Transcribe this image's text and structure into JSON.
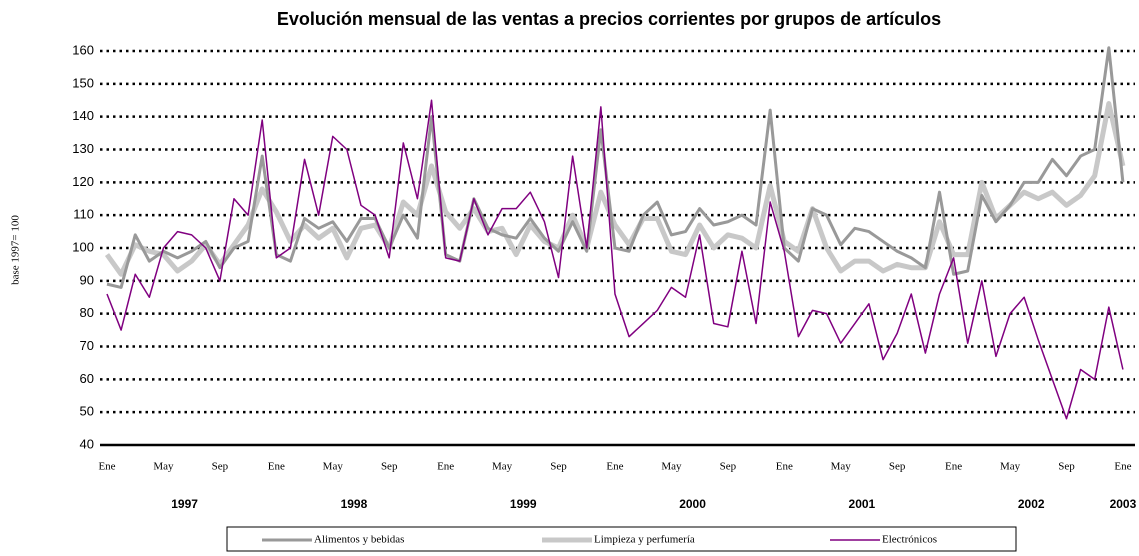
{
  "chart_data": {
    "type": "line",
    "title": "Evolución mensual de las ventas a precios corrientes por grupos de artículos",
    "y_label": "base 1997= 100",
    "categories": [
      "Ene",
      null,
      null,
      null,
      "May",
      null,
      null,
      null,
      "Sep",
      null,
      null,
      null,
      "Ene",
      null,
      null,
      null,
      "May",
      null,
      null,
      null,
      "Sep",
      null,
      null,
      null,
      "Ene",
      null,
      null,
      null,
      "May",
      null,
      null,
      null,
      "Sep",
      null,
      null,
      null,
      "Ene",
      null,
      null,
      null,
      "May",
      null,
      null,
      null,
      "Sep",
      null,
      null,
      null,
      "Ene",
      null,
      null,
      null,
      "May",
      null,
      null,
      null,
      "Sep",
      null,
      null,
      null,
      "Ene",
      null,
      null,
      null,
      "May",
      null,
      null,
      null,
      "Sep",
      null,
      null,
      null,
      "Ene"
    ],
    "years": [
      "1997",
      "1998",
      "1999",
      "2000",
      "2001",
      "2002",
      "2003"
    ],
    "series": [
      {
        "name": "Alimentos y bebidas",
        "color": "#999999",
        "values": [
          89,
          88,
          104,
          96,
          99,
          97,
          99,
          102,
          94,
          100,
          102,
          128,
          98,
          96,
          109,
          106,
          108,
          102,
          109,
          109,
          100,
          110,
          103,
          140,
          98,
          96,
          115,
          106,
          104,
          103,
          109,
          103,
          99,
          108,
          99,
          136,
          100,
          99,
          110,
          114,
          104,
          105,
          112,
          107,
          108,
          110,
          107,
          142,
          100,
          96,
          112,
          110,
          101,
          106,
          105,
          102,
          99,
          97,
          94,
          117,
          92,
          93,
          116,
          108,
          113,
          120,
          120,
          127,
          122,
          128,
          130,
          161,
          120
        ]
      },
      {
        "name": "Limpieza y perfumería",
        "color": "#c8c8c8",
        "values": [
          98,
          92,
          101,
          99,
          98,
          93,
          96,
          101,
          95,
          101,
          107,
          118,
          111,
          102,
          107,
          103,
          106,
          97,
          106,
          107,
          100,
          114,
          110,
          125,
          111,
          106,
          112,
          105,
          106,
          98,
          107,
          102,
          100,
          110,
          100,
          117,
          107,
          101,
          109,
          109,
          99,
          98,
          107,
          100,
          104,
          103,
          100,
          119,
          102,
          99,
          112,
          100,
          93,
          96,
          96,
          93,
          95,
          94,
          94,
          108,
          98,
          98,
          120,
          109,
          113,
          117,
          115,
          117,
          113,
          116,
          122,
          144,
          125
        ]
      },
      {
        "name": "Electrónicos",
        "color": "#800080",
        "values": [
          86,
          75,
          92,
          85,
          100,
          105,
          104,
          100,
          90,
          115,
          110,
          139,
          97,
          100,
          127,
          110,
          134,
          130,
          113,
          110,
          97,
          132,
          115,
          145,
          97,
          96,
          115,
          104,
          112,
          112,
          117,
          108,
          91,
          128,
          100,
          143,
          86,
          73,
          77,
          81,
          88,
          85,
          104,
          77,
          76,
          99,
          77,
          114,
          99,
          73,
          81,
          80,
          71,
          77,
          83,
          66,
          74,
          86,
          68,
          86,
          97,
          71,
          90,
          67,
          80,
          85,
          72,
          60,
          48,
          63,
          60,
          82,
          63
        ]
      }
    ],
    "ylim": [
      40,
      160
    ],
    "yticks": [
      40,
      50,
      60,
      70,
      80,
      90,
      100,
      110,
      120,
      130,
      140,
      150,
      160
    ],
    "grid": true
  }
}
